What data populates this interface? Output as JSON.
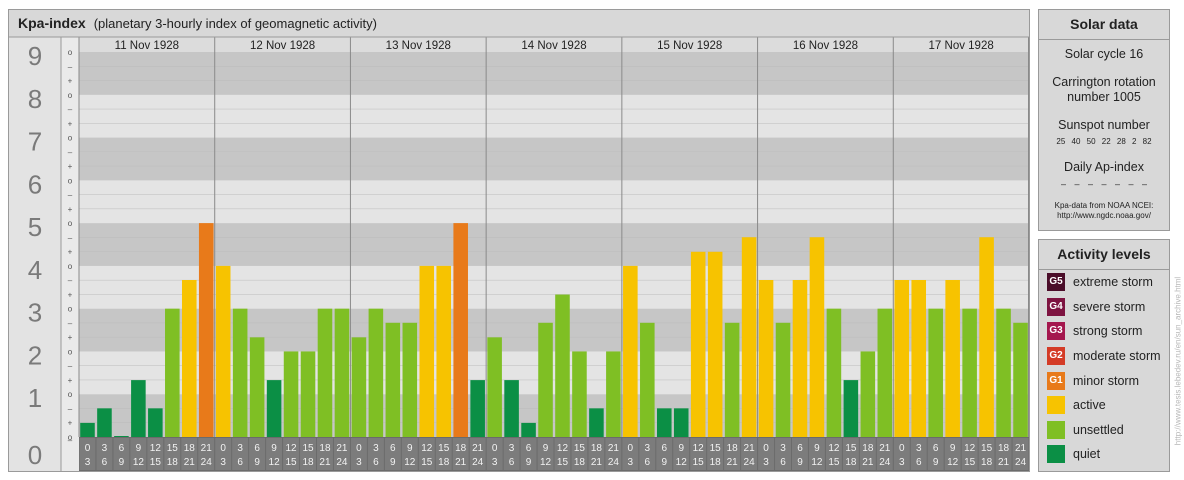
{
  "header": {
    "title": "Kpa-index",
    "subtitle": "(planetary 3-hourly index of geomagnetic activity)"
  },
  "colors": {
    "quiet": "#0b8f45",
    "unsettled": "#7fbf24",
    "active": "#f7c300",
    "minor_storm": "#e87a1a",
    "moderate_storm": "#d43b26",
    "strong_storm": "#a4174e",
    "severe_storm": "#7d1340",
    "extreme_storm": "#4a0d29"
  },
  "chart_data": {
    "type": "bar",
    "ylim": [
      0,
      9
    ],
    "y_ticks": [
      "0",
      "1",
      "2",
      "3",
      "4",
      "5",
      "6",
      "7",
      "8",
      "9"
    ],
    "sub_ticks": [
      "–",
      "o",
      "+"
    ],
    "days": [
      "11 Nov 1928",
      "12 Nov 1928",
      "13 Nov 1928",
      "14 Nov 1928",
      "15 Nov 1928",
      "16 Nov 1928",
      "17 Nov 1928"
    ],
    "interval_start_hours": [
      "0",
      "3",
      "6",
      "9",
      "12",
      "15",
      "18",
      "21"
    ],
    "interval_end_hours": [
      "3",
      "6",
      "9",
      "12",
      "15",
      "18",
      "21",
      "24"
    ],
    "values": [
      0.33,
      0.67,
      0.0,
      1.33,
      0.67,
      3.0,
      3.67,
      5.0,
      4.0,
      3.0,
      2.33,
      1.33,
      2.0,
      2.0,
      3.0,
      3.0,
      2.33,
      3.0,
      2.67,
      2.67,
      4.0,
      4.0,
      5.0,
      1.33,
      2.33,
      1.33,
      0.33,
      2.67,
      3.33,
      2.0,
      0.67,
      2.0,
      4.0,
      2.67,
      0.67,
      0.67,
      4.33,
      4.33,
      2.67,
      4.67,
      3.67,
      2.67,
      3.67,
      4.67,
      3.0,
      1.33,
      2.0,
      3.0,
      3.67,
      3.67,
      3.0,
      3.67,
      3.0,
      4.67,
      3.0,
      2.67
    ]
  },
  "solar": {
    "title": "Solar data",
    "cycle": "Solar cycle 16",
    "carrington_line1": "Carrington rotation",
    "carrington_line2": "number 1005",
    "sunspot_label": "Sunspot number",
    "sunspot_values": "25 40 50 22 28 2 82",
    "ap_label": "Daily Ap-index",
    "ap_values": "– – – – – – –",
    "credit_line1": "Kpa-data from NOAA NCEI:",
    "credit_line2": "http://www.ngdc.noaa.gov/"
  },
  "activity": {
    "title": "Activity levels",
    "items": [
      {
        "badge": "G5",
        "label": "extreme storm",
        "color": "#4a0d29"
      },
      {
        "badge": "G4",
        "label": "severe storm",
        "color": "#7d1340"
      },
      {
        "badge": "G3",
        "label": "strong storm",
        "color": "#a4174e"
      },
      {
        "badge": "G2",
        "label": "moderate storm",
        "color": "#d43b26"
      },
      {
        "badge": "G1",
        "label": "minor storm",
        "color": "#e87a1a"
      },
      {
        "badge": "",
        "label": "active",
        "color": "#f7c300"
      },
      {
        "badge": "",
        "label": "unsettled",
        "color": "#7fbf24"
      },
      {
        "badge": "",
        "label": "quiet",
        "color": "#0b8f45"
      }
    ]
  },
  "watermark": "http://www.tesis.lebedev.ru/en/sun_archive.html"
}
